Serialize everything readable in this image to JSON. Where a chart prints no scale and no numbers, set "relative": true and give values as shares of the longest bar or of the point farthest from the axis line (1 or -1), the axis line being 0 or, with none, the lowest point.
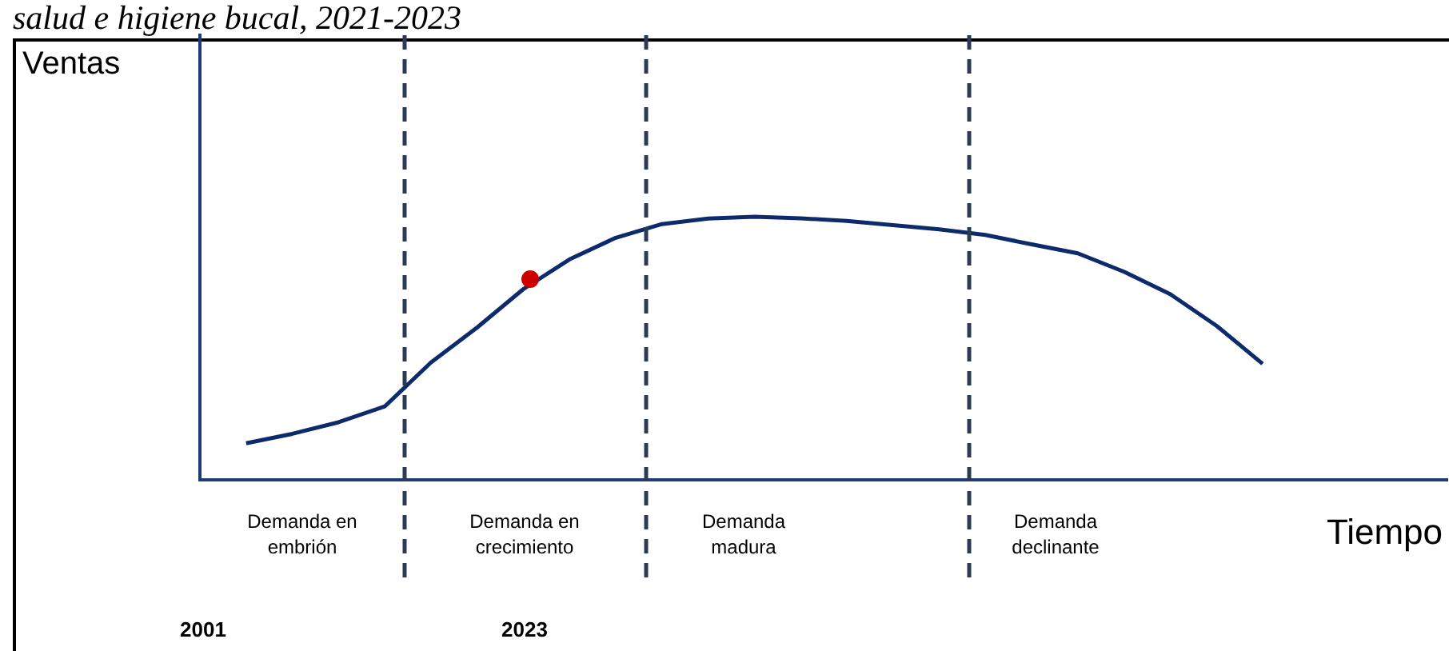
{
  "chart_data": {
    "type": "line",
    "relative": true,
    "title": "salud e higiene bucal, 2021-2023",
    "xlabel": "Tiempo",
    "ylabel": "Ventas",
    "categories": [
      null,
      null,
      null,
      null,
      null,
      null,
      null,
      null,
      null,
      null,
      null,
      null,
      null,
      null,
      null,
      null,
      null,
      null,
      null,
      null,
      null,
      null,
      null,
      null,
      null,
      null,
      null,
      null
    ],
    "series": [
      {
        "color": "#0d2a6b",
        "values": [
          null,
          0.139,
          0.175,
          0.219,
          0.279,
          0.446,
          0.579,
          0.725,
          0.838,
          0.92,
          0.972,
          0.993,
          1,
          0.994,
          0.984,
          0.968,
          0.952,
          0.931,
          0.895,
          0.861,
          0.791,
          0.706,
          0.586,
          0.441,
          null,
          null,
          null,
          null
        ]
      }
    ],
    "annotations": [
      "Demanda en embrión",
      "Demanda en crecimiento",
      "Demanda madura",
      "Demanda declinante",
      "2001",
      "2023"
    ]
  }
}
